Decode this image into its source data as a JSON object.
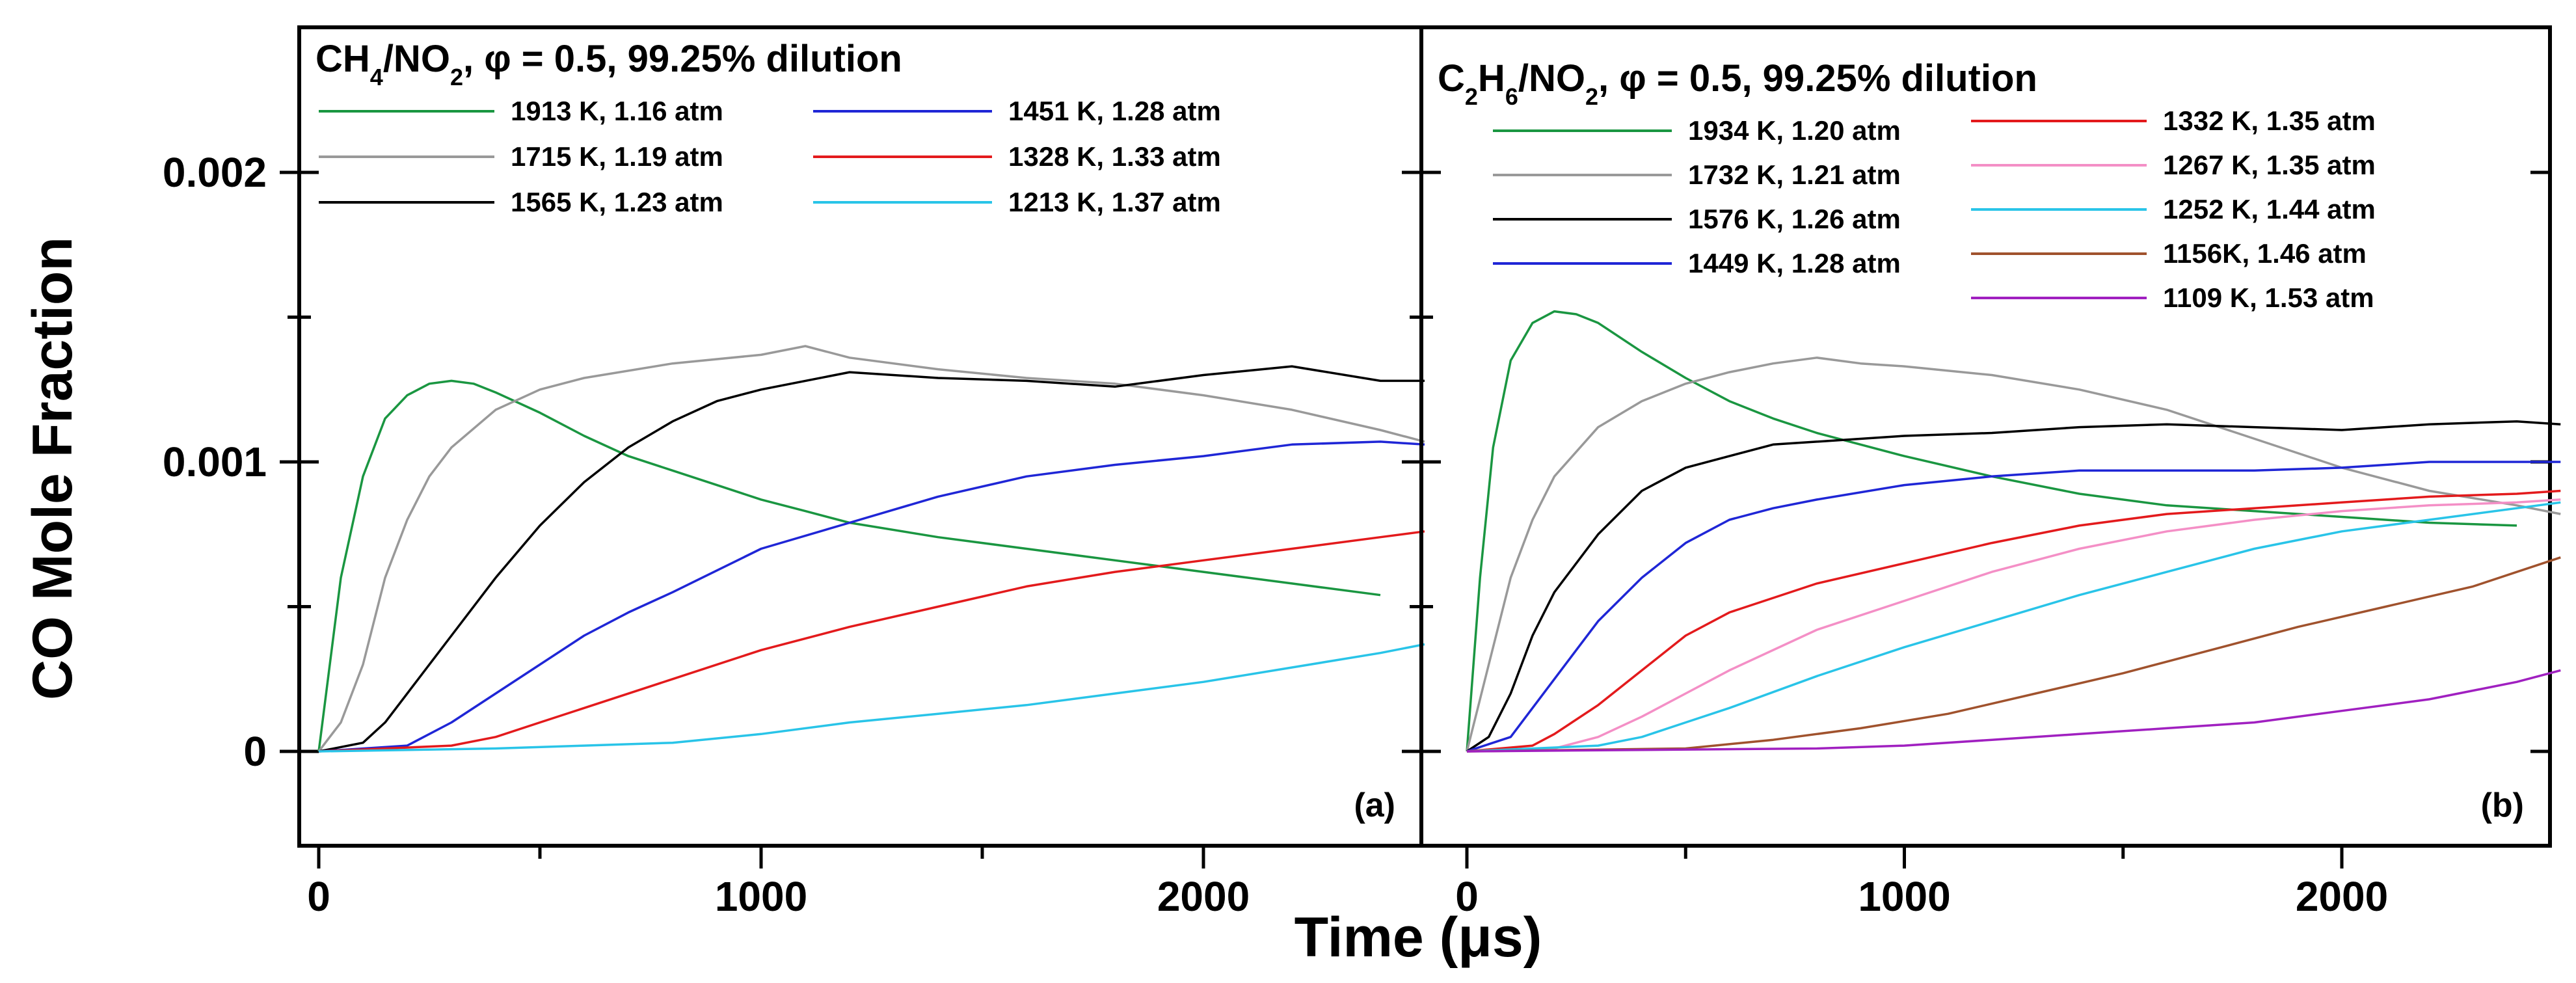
{
  "chart_data": {
    "type": "line",
    "y_axis_title": "CO Mole Fraction",
    "x_axis_title": "Time (μs)",
    "panels": [
      {
        "id": "a",
        "tag": "(a)",
        "title_parts": [
          "CH",
          "4",
          "/NO",
          "2",
          ", φ = 0.5, 99.25% dilution"
        ],
        "xlim": [
          -50,
          2500
        ],
        "ylim": [
          -0.0004,
          0.0025
        ],
        "x_ticks": [
          0,
          1000,
          2000
        ],
        "x_tick_labels": [
          "0",
          "1000",
          "2000"
        ],
        "y_ticks": [
          0,
          0.001,
          0.002
        ],
        "y_tick_labels": [
          "0",
          "0.001",
          "0.002"
        ],
        "series": [
          {
            "name": "1913 K, 1.16 atm",
            "color": "#1a9641",
            "x": [
              0,
              50,
              100,
              150,
              200,
              250,
              300,
              350,
              400,
              500,
              600,
              700,
              800,
              900,
              1000,
              1100,
              1200,
              1400,
              1600,
              1800,
              2000,
              2200,
              2400
            ],
            "y": [
              0,
              0.0006,
              0.00095,
              0.00115,
              0.00123,
              0.00127,
              0.00128,
              0.00127,
              0.00124,
              0.00117,
              0.00109,
              0.00102,
              0.00097,
              0.00092,
              0.00087,
              0.00083,
              0.00079,
              0.00074,
              0.0007,
              0.00066,
              0.00062,
              0.00058,
              0.00054
            ]
          },
          {
            "name": "1715 K, 1.19 atm",
            "color": "#999999",
            "x": [
              0,
              50,
              100,
              150,
              200,
              250,
              300,
              400,
              500,
              600,
              800,
              1000,
              1100,
              1200,
              1400,
              1600,
              1800,
              2000,
              2200,
              2400,
              2500
            ],
            "y": [
              0,
              0.0001,
              0.0003,
              0.0006,
              0.0008,
              0.00095,
              0.00105,
              0.00118,
              0.00125,
              0.00129,
              0.00134,
              0.00137,
              0.0014,
              0.00136,
              0.00132,
              0.00129,
              0.00127,
              0.00123,
              0.00118,
              0.00111,
              0.00107
            ]
          },
          {
            "name": "1565 K, 1.23 atm",
            "color": "#000000",
            "x": [
              0,
              100,
              150,
              200,
              250,
              300,
              400,
              500,
              600,
              700,
              800,
              900,
              1000,
              1200,
              1400,
              1600,
              1800,
              2000,
              2200,
              2400,
              2500
            ],
            "y": [
              0,
              3e-05,
              0.0001,
              0.0002,
              0.0003,
              0.0004,
              0.0006,
              0.00078,
              0.00093,
              0.00105,
              0.00114,
              0.00121,
              0.00125,
              0.00131,
              0.00129,
              0.00128,
              0.00126,
              0.0013,
              0.00133,
              0.00128,
              0.00128
            ]
          },
          {
            "name": "1451 K, 1.28 atm",
            "color": "#1f26d6",
            "x": [
              0,
              200,
              300,
              400,
              500,
              600,
              700,
              800,
              1000,
              1200,
              1400,
              1600,
              1800,
              2000,
              2200,
              2400,
              2500
            ],
            "y": [
              0,
              2e-05,
              0.0001,
              0.0002,
              0.0003,
              0.0004,
              0.00048,
              0.00055,
              0.0007,
              0.00079,
              0.00088,
              0.00095,
              0.00099,
              0.00102,
              0.00106,
              0.00107,
              0.00106
            ]
          },
          {
            "name": "1328 K, 1.33 atm",
            "color": "#e31a1c",
            "x": [
              0,
              300,
              400,
              500,
              600,
              800,
              1000,
              1200,
              1400,
              1600,
              1800,
              2000,
              2200,
              2400,
              2500
            ],
            "y": [
              0,
              2e-05,
              5e-05,
              0.0001,
              0.00015,
              0.00025,
              0.00035,
              0.00043,
              0.0005,
              0.00057,
              0.00062,
              0.00066,
              0.0007,
              0.00074,
              0.00076
            ]
          },
          {
            "name": "1213 K, 1.37 atm",
            "color": "#29c4e8",
            "x": [
              0,
              400,
              600,
              800,
              1000,
              1200,
              1400,
              1600,
              1800,
              2000,
              2200,
              2400,
              2500
            ],
            "y": [
              0,
              1e-05,
              2e-05,
              3e-05,
              6e-05,
              0.0001,
              0.00013,
              0.00016,
              0.0002,
              0.00024,
              0.00029,
              0.00034,
              0.00037
            ]
          }
        ]
      },
      {
        "id": "b",
        "tag": "(b)",
        "title_parts": [
          "C",
          "2",
          "H",
          "6",
          "/NO",
          "2",
          ", φ = 0.5, 99.25% dilution"
        ],
        "xlim": [
          -50,
          2500
        ],
        "ylim": [
          -0.0004,
          0.0025
        ],
        "x_ticks": [
          0,
          1000,
          2000
        ],
        "x_tick_labels": [
          "0",
          "1000",
          "2000"
        ],
        "y_ticks": [
          0,
          0.001,
          0.002
        ],
        "y_tick_labels": [
          "0",
          "0.001",
          "0.002"
        ],
        "series": [
          {
            "name": "1934 K, 1.20 atm",
            "color": "#1a9641",
            "x": [
              0,
              30,
              60,
              100,
              150,
              200,
              250,
              300,
              400,
              500,
              600,
              700,
              800,
              1000,
              1200,
              1400,
              1600,
              1800,
              2000,
              2200,
              2400
            ],
            "y": [
              0,
              0.0006,
              0.00105,
              0.00135,
              0.00148,
              0.00152,
              0.00151,
              0.00148,
              0.00138,
              0.00129,
              0.00121,
              0.00115,
              0.0011,
              0.00102,
              0.00095,
              0.00089,
              0.00085,
              0.00083,
              0.00081,
              0.00079,
              0.00078
            ]
          },
          {
            "name": "1732 K, 1.21 atm",
            "color": "#999999",
            "x": [
              0,
              50,
              100,
              150,
              200,
              300,
              400,
              500,
              600,
              700,
              800,
              900,
              1000,
              1200,
              1400,
              1600,
              1800,
              2000,
              2200,
              2400,
              2500
            ],
            "y": [
              0,
              0.0003,
              0.0006,
              0.0008,
              0.00095,
              0.00112,
              0.00121,
              0.00127,
              0.00131,
              0.00134,
              0.00136,
              0.00134,
              0.00133,
              0.0013,
              0.00125,
              0.00118,
              0.00108,
              0.00098,
              0.0009,
              0.00085,
              0.00082
            ]
          },
          {
            "name": "1576 K, 1.26 atm",
            "color": "#000000",
            "x": [
              0,
              50,
              100,
              150,
              200,
              300,
              400,
              500,
              600,
              700,
              800,
              1000,
              1200,
              1400,
              1600,
              1800,
              2000,
              2200,
              2400,
              2500
            ],
            "y": [
              0,
              5e-05,
              0.0002,
              0.0004,
              0.00055,
              0.00075,
              0.0009,
              0.00098,
              0.00102,
              0.00106,
              0.00107,
              0.00109,
              0.0011,
              0.00112,
              0.00113,
              0.00112,
              0.00111,
              0.00113,
              0.00114,
              0.00113
            ]
          },
          {
            "name": "1449 K, 1.28 atm",
            "color": "#1f26d6",
            "x": [
              0,
              100,
              150,
              200,
              250,
              300,
              400,
              500,
              600,
              700,
              800,
              1000,
              1200,
              1400,
              1600,
              1800,
              2000,
              2200,
              2400,
              2500
            ],
            "y": [
              0,
              5e-05,
              0.00015,
              0.00025,
              0.00035,
              0.00045,
              0.0006,
              0.00072,
              0.0008,
              0.00084,
              0.00087,
              0.00092,
              0.00095,
              0.00097,
              0.00097,
              0.00097,
              0.00098,
              0.001,
              0.001,
              0.001
            ]
          },
          {
            "name": "1332 K, 1.35 atm",
            "color": "#e31a1c",
            "x": [
              0,
              150,
              200,
              300,
              400,
              500,
              600,
              800,
              1000,
              1200,
              1400,
              1600,
              1800,
              2000,
              2200,
              2400,
              2500
            ],
            "y": [
              0,
              2e-05,
              6e-05,
              0.00016,
              0.00028,
              0.0004,
              0.00048,
              0.00058,
              0.00065,
              0.00072,
              0.00078,
              0.00082,
              0.00084,
              0.00086,
              0.00088,
              0.00089,
              0.0009
            ]
          },
          {
            "name": "1267 K, 1.35 atm",
            "color": "#f48fc6",
            "x": [
              0,
              200,
              300,
              400,
              500,
              600,
              800,
              1000,
              1200,
              1400,
              1600,
              1800,
              2000,
              2200,
              2400,
              2500
            ],
            "y": [
              0,
              1e-05,
              5e-05,
              0.00012,
              0.0002,
              0.00028,
              0.00042,
              0.00052,
              0.00062,
              0.0007,
              0.00076,
              0.0008,
              0.00083,
              0.00085,
              0.00086,
              0.00087
            ]
          },
          {
            "name": "1252 K, 1.44 atm",
            "color": "#29c4e8",
            "x": [
              0,
              300,
              400,
              500,
              600,
              800,
              1000,
              1200,
              1400,
              1600,
              1800,
              2000,
              2200,
              2400,
              2500
            ],
            "y": [
              0,
              2e-05,
              5e-05,
              0.0001,
              0.00015,
              0.00026,
              0.00036,
              0.00045,
              0.00054,
              0.00062,
              0.0007,
              0.00076,
              0.0008,
              0.00084,
              0.00086
            ]
          },
          {
            "name": "1156K, 1.46 atm",
            "color": "#a0522d",
            "x": [
              0,
              500,
              700,
              900,
              1100,
              1300,
              1500,
              1700,
              1900,
              2100,
              2300,
              2500
            ],
            "y": [
              0,
              1e-05,
              4e-05,
              8e-05,
              0.00013,
              0.0002,
              0.00027,
              0.00035,
              0.00043,
              0.0005,
              0.00057,
              0.00067
            ]
          },
          {
            "name": "1109 K, 1.53 atm",
            "color": "#a020c0",
            "x": [
              0,
              800,
              1000,
              1200,
              1400,
              1600,
              1800,
              2000,
              2200,
              2400,
              2500
            ],
            "y": [
              0,
              1e-05,
              2e-05,
              4e-05,
              6e-05,
              8e-05,
              0.0001,
              0.00014,
              0.00018,
              0.00024,
              0.00028
            ]
          }
        ]
      }
    ]
  }
}
